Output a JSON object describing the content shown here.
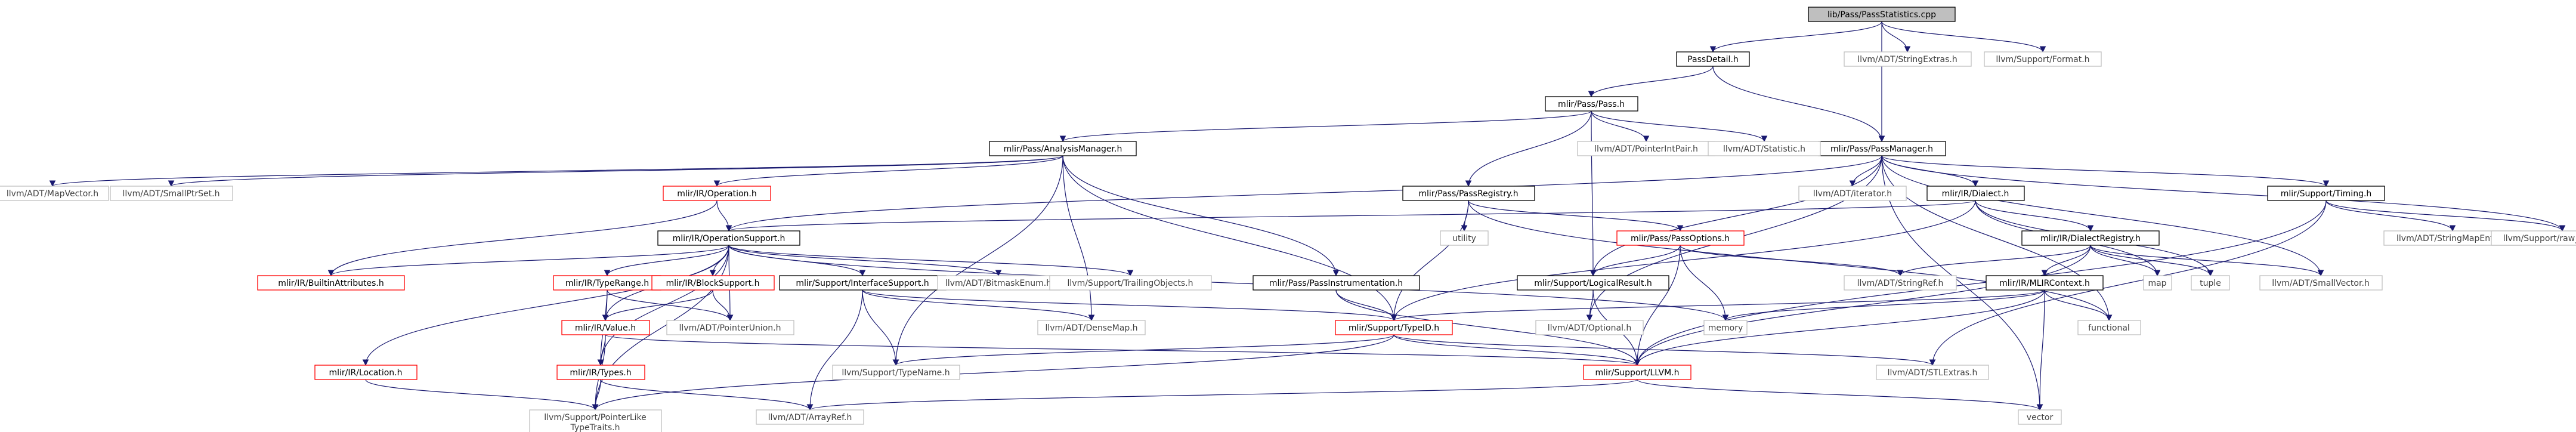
{
  "colors": {
    "edge_color": "#191970",
    "node_border_black": "#000000",
    "node_border_red": "#ff0000",
    "node_border_gray": "#bfbfbf",
    "root_fill": "#bfbfbf",
    "node_fill": "#ffffff",
    "text_default": "#000000",
    "text_gray": "#404040"
  },
  "nodes": [
    {
      "id": "root",
      "lines": [
        "lib/Pass/PassStatistics.cpp"
      ],
      "kind": "root"
    },
    {
      "id": "passdetail",
      "lines": [
        "PassDetail.h"
      ],
      "kind": "local"
    },
    {
      "id": "strextras",
      "lines": [
        "llvm/ADT/StringExtras.h"
      ],
      "kind": "external"
    },
    {
      "id": "format",
      "lines": [
        "llvm/Support/Format.h"
      ],
      "kind": "external"
    },
    {
      "id": "pass",
      "lines": [
        "mlir/Pass/Pass.h"
      ],
      "kind": "local"
    },
    {
      "id": "passmgr",
      "lines": [
        "mlir/Pass/PassManager.h"
      ],
      "kind": "local"
    },
    {
      "id": "analysismgr",
      "lines": [
        "mlir/Pass/AnalysisManager.h"
      ],
      "kind": "local"
    },
    {
      "id": "ptrintpair",
      "lines": [
        "llvm/ADT/PointerIntPair.h"
      ],
      "kind": "external"
    },
    {
      "id": "statistic",
      "lines": [
        "llvm/ADT/Statistic.h"
      ],
      "kind": "external"
    },
    {
      "id": "mapvector",
      "lines": [
        "llvm/ADT/MapVector.h"
      ],
      "kind": "external"
    },
    {
      "id": "smallptrset",
      "lines": [
        "llvm/ADT/SmallPtrSet.h"
      ],
      "kind": "external"
    },
    {
      "id": "operation",
      "lines": [
        "mlir/IR/Operation.h"
      ],
      "kind": "truncated"
    },
    {
      "id": "passregistry",
      "lines": [
        "mlir/Pass/PassRegistry.h"
      ],
      "kind": "local"
    },
    {
      "id": "iterator",
      "lines": [
        "llvm/ADT/iterator.h"
      ],
      "kind": "external"
    },
    {
      "id": "dialect",
      "lines": [
        "mlir/IR/Dialect.h"
      ],
      "kind": "local"
    },
    {
      "id": "timing",
      "lines": [
        "mlir/Support/Timing.h"
      ],
      "kind": "local"
    },
    {
      "id": "opsupport",
      "lines": [
        "mlir/IR/OperationSupport.h"
      ],
      "kind": "local"
    },
    {
      "id": "utility",
      "lines": [
        "utility"
      ],
      "kind": "external"
    },
    {
      "id": "passoptions",
      "lines": [
        "mlir/Pass/PassOptions.h"
      ],
      "kind": "truncated"
    },
    {
      "id": "dialectreg",
      "lines": [
        "mlir/IR/DialectRegistry.h"
      ],
      "kind": "local"
    },
    {
      "id": "strmapentry",
      "lines": [
        "llvm/ADT/StringMapEntry.h"
      ],
      "kind": "external"
    },
    {
      "id": "rawostream",
      "lines": [
        "llvm/Support/raw_ostream.h"
      ],
      "kind": "external"
    },
    {
      "id": "builtinattr",
      "lines": [
        "mlir/IR/BuiltinAttributes.h"
      ],
      "kind": "truncated"
    },
    {
      "id": "typerange",
      "lines": [
        "mlir/IR/TypeRange.h"
      ],
      "kind": "truncated"
    },
    {
      "id": "blocksupport",
      "lines": [
        "mlir/IR/BlockSupport.h"
      ],
      "kind": "truncated"
    },
    {
      "id": "ifacesupport",
      "lines": [
        "mlir/Support/InterfaceSupport.h"
      ],
      "kind": "local"
    },
    {
      "id": "bitmaskenum",
      "lines": [
        "llvm/ADT/BitmaskEnum.h"
      ],
      "kind": "external"
    },
    {
      "id": "trailingobj",
      "lines": [
        "llvm/Support/TrailingObjects.h"
      ],
      "kind": "external"
    },
    {
      "id": "passinstr",
      "lines": [
        "mlir/Pass/PassInstrumentation.h"
      ],
      "kind": "local"
    },
    {
      "id": "logicalresult",
      "lines": [
        "mlir/Support/LogicalResult.h"
      ],
      "kind": "local"
    },
    {
      "id": "stringref",
      "lines": [
        "llvm/ADT/StringRef.h"
      ],
      "kind": "external"
    },
    {
      "id": "mlircontext",
      "lines": [
        "mlir/IR/MLIRContext.h"
      ],
      "kind": "local"
    },
    {
      "id": "map",
      "lines": [
        "map"
      ],
      "kind": "external"
    },
    {
      "id": "tuple",
      "lines": [
        "tuple"
      ],
      "kind": "external"
    },
    {
      "id": "smallvector",
      "lines": [
        "llvm/ADT/SmallVector.h"
      ],
      "kind": "external"
    },
    {
      "id": "value",
      "lines": [
        "mlir/IR/Value.h"
      ],
      "kind": "truncated"
    },
    {
      "id": "ptrunion",
      "lines": [
        "llvm/ADT/PointerUnion.h"
      ],
      "kind": "external"
    },
    {
      "id": "densemap",
      "lines": [
        "llvm/ADT/DenseMap.h"
      ],
      "kind": "external"
    },
    {
      "id": "typeid",
      "lines": [
        "mlir/Support/TypeID.h"
      ],
      "kind": "truncated"
    },
    {
      "id": "optional",
      "lines": [
        "llvm/ADT/Optional.h"
      ],
      "kind": "external"
    },
    {
      "id": "memory",
      "lines": [
        "memory"
      ],
      "kind": "external"
    },
    {
      "id": "functional",
      "lines": [
        "functional"
      ],
      "kind": "external"
    },
    {
      "id": "location",
      "lines": [
        "mlir/IR/Location.h"
      ],
      "kind": "truncated"
    },
    {
      "id": "types",
      "lines": [
        "mlir/IR/Types.h"
      ],
      "kind": "truncated"
    },
    {
      "id": "typename",
      "lines": [
        "llvm/Support/TypeName.h"
      ],
      "kind": "external"
    },
    {
      "id": "llvmh",
      "lines": [
        "mlir/Support/LLVM.h"
      ],
      "kind": "truncated"
    },
    {
      "id": "stlextras",
      "lines": [
        "llvm/ADT/STLExtras.h"
      ],
      "kind": "external"
    },
    {
      "id": "ptrliketraits",
      "lines": [
        "llvm/Support/PointerLike",
        "TypeTraits.h"
      ],
      "kind": "external"
    },
    {
      "id": "arrayref",
      "lines": [
        "llvm/ADT/ArrayRef.h"
      ],
      "kind": "external"
    },
    {
      "id": "vector",
      "lines": [
        "vector"
      ],
      "kind": "external"
    }
  ],
  "edges": [
    [
      "root",
      "passdetail"
    ],
    [
      "root",
      "strextras"
    ],
    [
      "root",
      "format"
    ],
    [
      "root",
      "passmgr"
    ],
    [
      "passdetail",
      "pass"
    ],
    [
      "passdetail",
      "passmgr"
    ],
    [
      "pass",
      "analysismgr"
    ],
    [
      "pass",
      "passregistry"
    ],
    [
      "pass",
      "ptrintpair"
    ],
    [
      "pass",
      "statistic"
    ],
    [
      "pass",
      "logicalresult"
    ],
    [
      "passmgr",
      "opsupport"
    ],
    [
      "passmgr",
      "iterator"
    ],
    [
      "passmgr",
      "dialect"
    ],
    [
      "passmgr",
      "timing"
    ],
    [
      "passmgr",
      "logicalresult"
    ],
    [
      "passmgr",
      "functional"
    ],
    [
      "passmgr",
      "optional"
    ],
    [
      "passmgr",
      "smallvector"
    ],
    [
      "passmgr",
      "rawostream"
    ],
    [
      "passmgr",
      "vector"
    ],
    [
      "analysismgr",
      "mapvector"
    ],
    [
      "analysismgr",
      "smallptrset"
    ],
    [
      "analysismgr",
      "operation"
    ],
    [
      "analysismgr",
      "passinstr"
    ],
    [
      "analysismgr",
      "typeid"
    ],
    [
      "analysismgr",
      "densemap"
    ],
    [
      "analysismgr",
      "typename"
    ],
    [
      "operation",
      "opsupport"
    ],
    [
      "operation",
      "builtinattr"
    ],
    [
      "passregistry",
      "utility"
    ],
    [
      "passregistry",
      "passoptions"
    ],
    [
      "passregistry",
      "typeid"
    ],
    [
      "passregistry",
      "functional"
    ],
    [
      "dialect",
      "opsupport"
    ],
    [
      "dialect",
      "dialectreg"
    ],
    [
      "dialect",
      "typeid"
    ],
    [
      "dialect",
      "map"
    ],
    [
      "dialect",
      "tuple"
    ],
    [
      "timing",
      "strmapentry"
    ],
    [
      "timing",
      "rawostream"
    ],
    [
      "timing",
      "llvmh"
    ],
    [
      "timing",
      "stlextras"
    ],
    [
      "opsupport",
      "builtinattr"
    ],
    [
      "opsupport",
      "typerange"
    ],
    [
      "opsupport",
      "blocksupport"
    ],
    [
      "opsupport",
      "ifacesupport"
    ],
    [
      "opsupport",
      "bitmaskenum"
    ],
    [
      "opsupport",
      "trailingobj"
    ],
    [
      "opsupport",
      "value"
    ],
    [
      "opsupport",
      "location"
    ],
    [
      "opsupport",
      "types"
    ],
    [
      "opsupport",
      "ptrunion"
    ],
    [
      "opsupport",
      "ptrliketraits"
    ],
    [
      "opsupport",
      "memory"
    ],
    [
      "passoptions",
      "logicalresult"
    ],
    [
      "passoptions",
      "stringref"
    ],
    [
      "passoptions",
      "memory"
    ],
    [
      "passoptions",
      "llvmh"
    ],
    [
      "dialectreg",
      "mlircontext"
    ],
    [
      "dialectreg",
      "stringref"
    ],
    [
      "dialectreg",
      "map"
    ],
    [
      "dialectreg",
      "tuple"
    ],
    [
      "dialectreg",
      "smallvector"
    ],
    [
      "dialectreg",
      "llvmh"
    ],
    [
      "typerange",
      "types"
    ],
    [
      "typerange",
      "value"
    ],
    [
      "typerange",
      "ptrunion"
    ],
    [
      "blocksupport",
      "value"
    ],
    [
      "blocksupport",
      "ptrunion"
    ],
    [
      "ifacesupport",
      "typeid"
    ],
    [
      "ifacesupport",
      "densemap"
    ],
    [
      "ifacesupport",
      "typename"
    ],
    [
      "ifacesupport",
      "arrayref"
    ],
    [
      "passinstr",
      "typeid"
    ],
    [
      "passinstr",
      "llvmh"
    ],
    [
      "logicalresult",
      "optional"
    ],
    [
      "logicalresult",
      "llvmh"
    ],
    [
      "mlircontext",
      "typeid"
    ],
    [
      "mlircontext",
      "memory"
    ],
    [
      "mlircontext",
      "functional"
    ],
    [
      "mlircontext",
      "llvmh"
    ],
    [
      "mlircontext",
      "vector"
    ],
    [
      "value",
      "types"
    ],
    [
      "value",
      "llvmh"
    ],
    [
      "value",
      "ptrliketraits"
    ],
    [
      "typeid",
      "typename"
    ],
    [
      "typeid",
      "llvmh"
    ],
    [
      "typeid",
      "stlextras"
    ],
    [
      "typeid",
      "ptrliketraits"
    ],
    [
      "location",
      "ptrliketraits"
    ],
    [
      "types",
      "ptrliketraits"
    ],
    [
      "types",
      "arrayref"
    ],
    [
      "llvmh",
      "arrayref"
    ],
    [
      "llvmh",
      "vector"
    ]
  ]
}
